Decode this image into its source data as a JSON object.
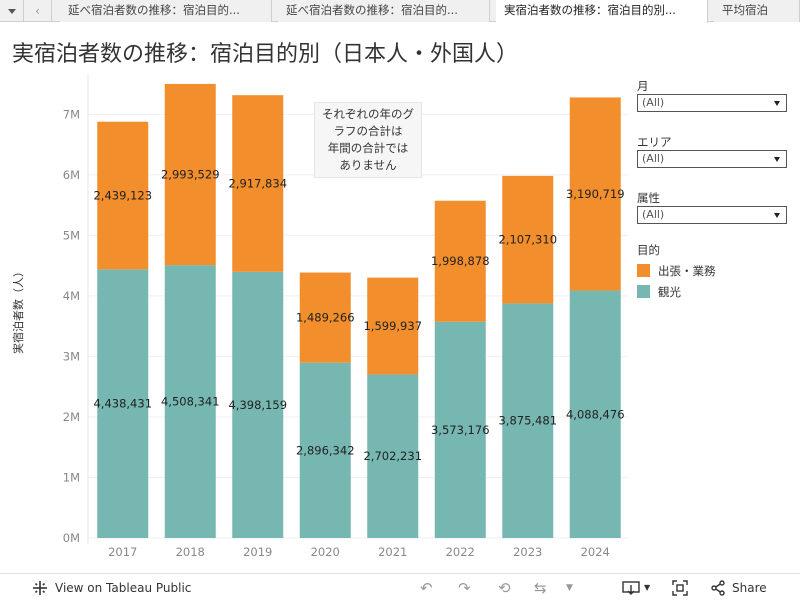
{
  "tabs": [
    {
      "label": "延べ宿泊者数の推移：宿泊目的..."
    },
    {
      "label": "延べ宿泊者数の推移：宿泊目的..."
    },
    {
      "label": "実宿泊者数の推移：宿泊目的別..."
    },
    {
      "label": "平均宿泊"
    }
  ],
  "title": "実宿泊者数の推移：宿泊目的別（日本人・外国人）",
  "annotation": [
    "それぞれの年のグ",
    "ラフの合計は",
    "年間の合計では",
    "ありません"
  ],
  "filters": [
    {
      "label": "月",
      "value": "(All)"
    },
    {
      "label": "エリア",
      "value": "(All)"
    },
    {
      "label": "属性",
      "value": "(All)"
    }
  ],
  "legend": {
    "title": "目的",
    "items": [
      {
        "label": "出張・業務",
        "color": "#f28e2b"
      },
      {
        "label": "観光",
        "color": "#76b7b2"
      }
    ]
  },
  "toolbar": {
    "view_label": "View on Tableau Public",
    "share_label": "Share"
  },
  "chart_data": {
    "type": "bar",
    "stacked": true,
    "categories": [
      "2017",
      "2018",
      "2019",
      "2020",
      "2021",
      "2022",
      "2023",
      "2024"
    ],
    "series": [
      {
        "name": "観光",
        "color": "#76b7b2",
        "values": [
          4438431,
          4508341,
          4398159,
          2896342,
          2702231,
          3573176,
          3875481,
          4088476
        ],
        "labels": [
          "4,438,431",
          "4,508,341",
          "4,398,159",
          "2,896,342",
          "2,702,231",
          "3,573,176",
          "3,875,481",
          "4,088,476"
        ]
      },
      {
        "name": "出張・業務",
        "color": "#f28e2b",
        "values": [
          2439123,
          2993529,
          2917834,
          1489266,
          1599937,
          1998878,
          2107310,
          3190719
        ],
        "labels": [
          "2,439,123",
          "2,993,529",
          "2,917,834",
          "1,489,266",
          "1,599,937",
          "1,998,878",
          "2,107,310",
          "3,190,719"
        ]
      }
    ],
    "ylabel": "実宿泊者数（人）",
    "yticks": [
      0,
      1000000,
      2000000,
      3000000,
      4000000,
      5000000,
      6000000,
      7000000
    ],
    "ytick_labels": [
      "0M",
      "1M",
      "2M",
      "3M",
      "4M",
      "5M",
      "6M",
      "7M"
    ],
    "ylim": [
      0,
      7600000
    ],
    "grid": true
  }
}
